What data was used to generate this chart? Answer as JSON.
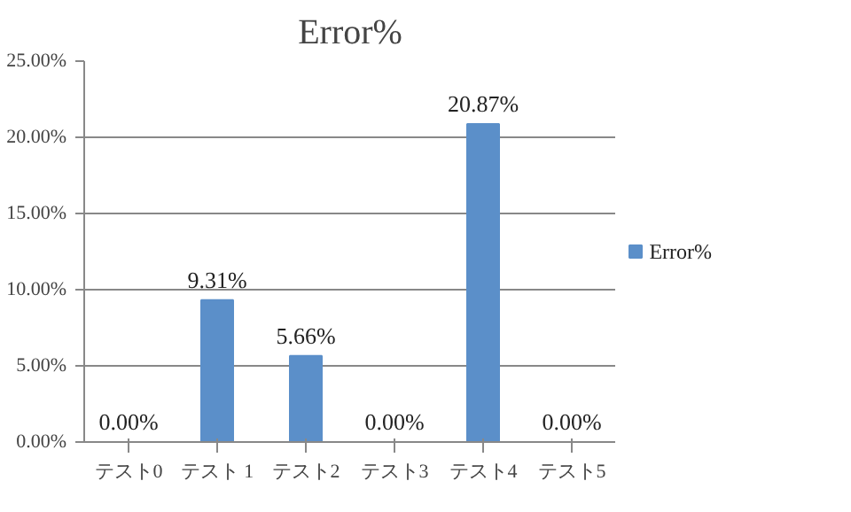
{
  "chart_data": {
    "type": "bar",
    "title": "Error%",
    "categories": [
      "テスト0",
      "テスト 1",
      "テスト2",
      "テスト3",
      "テスト4",
      "テスト5"
    ],
    "series": [
      {
        "name": "Error%",
        "color": "#5b8fc9",
        "values": [
          0,
          9.31,
          5.66,
          0,
          20.87,
          0
        ],
        "value_labels": [
          "0.00%",
          "9.31%",
          "5.66%",
          "0.00%",
          "20.87%",
          "0.00%"
        ]
      }
    ],
    "ylim": [
      0,
      25
    ],
    "yticks": [
      {
        "value": 0,
        "label": "0.00%"
      },
      {
        "value": 5,
        "label": "5.00%"
      },
      {
        "value": 10,
        "label": "10.00%"
      },
      {
        "value": 15,
        "label": "15.00%"
      },
      {
        "value": 20,
        "label": "20.00%"
      },
      {
        "value": 25,
        "label": "25.00%"
      }
    ],
    "grid": "y",
    "legend": "right"
  }
}
